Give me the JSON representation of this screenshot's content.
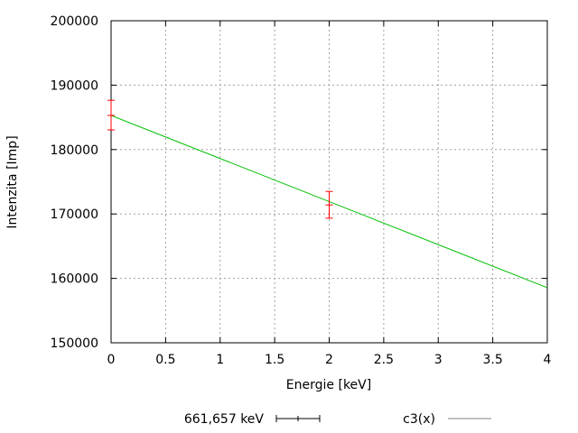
{
  "chart_data": {
    "type": "scatter",
    "xlabel": "Energie [keV]",
    "ylabel": "Intenzita [Imp]",
    "xlim": [
      0,
      4
    ],
    "ylim": [
      150000,
      200000
    ],
    "xticks": [
      "0",
      "0.5",
      "1",
      "1.5",
      "2",
      "2.5",
      "3",
      "3.5",
      "4"
    ],
    "xtick_values": [
      0,
      0.5,
      1,
      1.5,
      2,
      2.5,
      3,
      3.5,
      4
    ],
    "yticks": [
      "150000",
      "160000",
      "170000",
      "180000",
      "190000",
      "200000"
    ],
    "ytick_values": [
      150000,
      160000,
      170000,
      180000,
      190000,
      200000
    ],
    "grid": true,
    "legend_position": "bottom",
    "series": [
      {
        "name": "661,657 keV",
        "kind": "errorbars",
        "color": "#ff0000",
        "x": [
          0,
          2
        ],
        "y": [
          185300,
          171400
        ],
        "yerr_low": [
          183050,
          169350
        ],
        "yerr_high": [
          187650,
          173500
        ]
      },
      {
        "name": "c3(x)",
        "kind": "line",
        "color": "#00c000",
        "x": [
          0,
          4
        ],
        "y": [
          185300,
          158550
        ]
      }
    ]
  }
}
